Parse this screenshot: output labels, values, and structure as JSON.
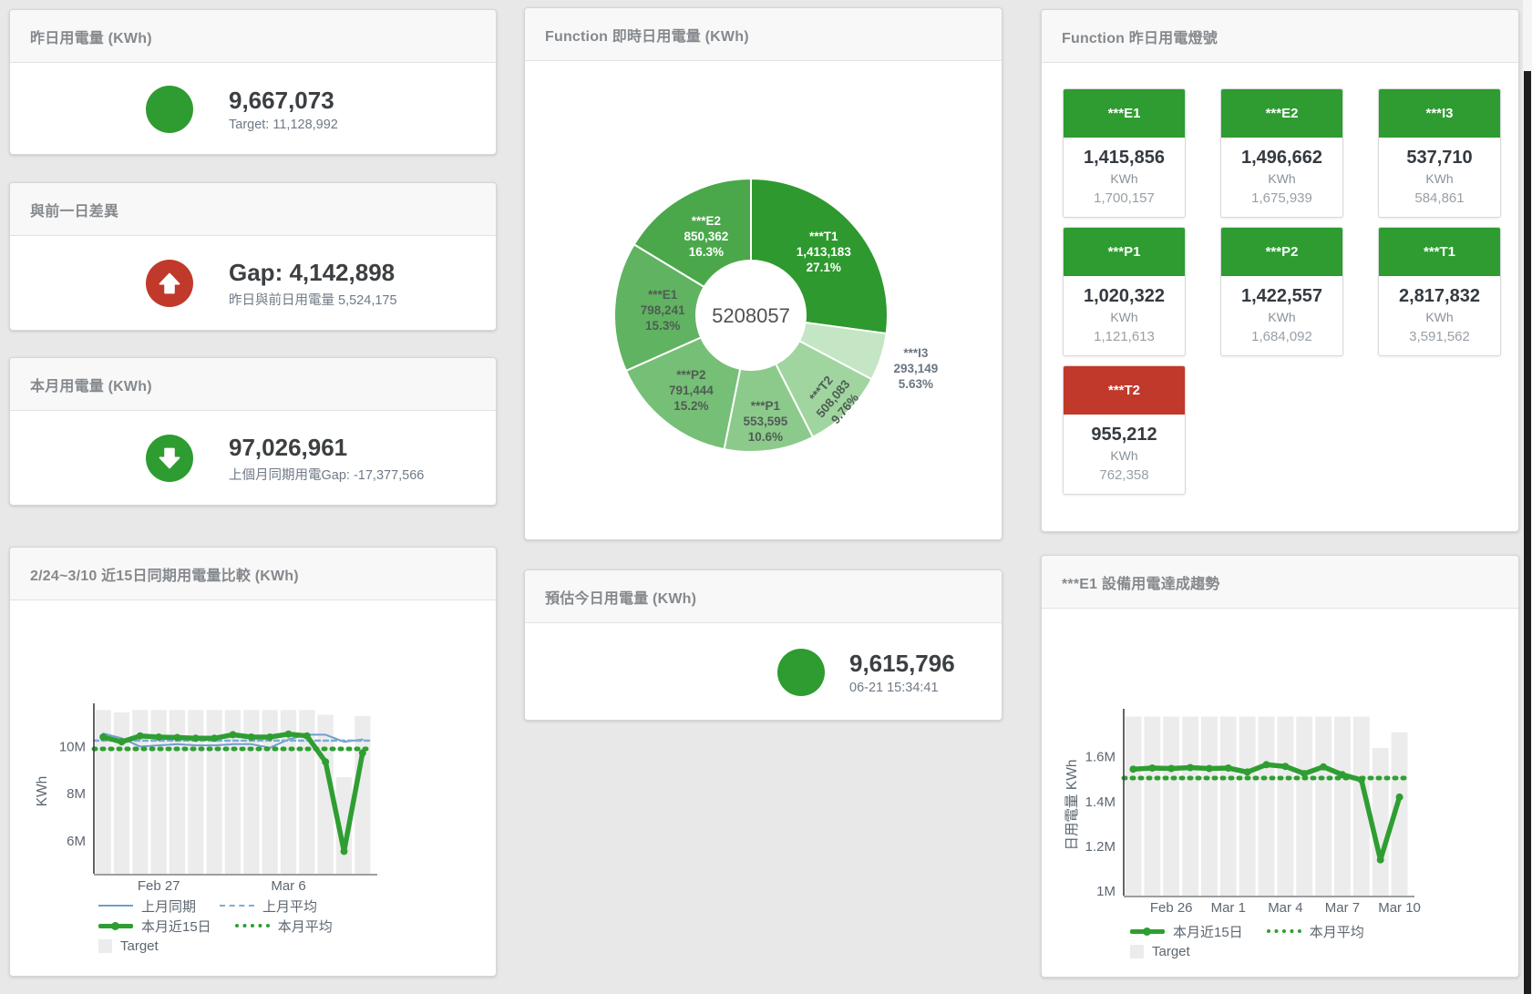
{
  "panels": {
    "yesterday": {
      "title": "昨日用電量 (KWh)",
      "value": "9,667,073",
      "subtitle": "Target: 11,128,992",
      "status_color": "#2e9c30"
    },
    "gap": {
      "title": "與前一日差異",
      "value": "Gap: 4,142,898",
      "subtitle": "昨日與前日用電量 5,524,175",
      "status_color": "#c0392b",
      "direction": "up"
    },
    "month": {
      "title": "本月用電量 (KWh)",
      "value": "97,026,961",
      "subtitle": "上個月同期用電Gap: -17,377,566",
      "status_color": "#2e9c30",
      "direction": "down"
    },
    "estimate": {
      "title": "預估今日用電量 (KWh)",
      "value": "9,615,796",
      "subtitle": "06-21 15:34:41",
      "status_color": "#2e9c30"
    },
    "lights": {
      "title": "Function 昨日用電燈號",
      "unit": "KWh",
      "tiles": [
        {
          "label": "***E1",
          "value": "1,415,856",
          "target": "1,700,157",
          "color": "#2e9c30"
        },
        {
          "label": "***E2",
          "value": "1,496,662",
          "target": "1,675,939",
          "color": "#2e9c30"
        },
        {
          "label": "***I3",
          "value": "537,710",
          "target": "584,861",
          "color": "#2e9c30"
        },
        {
          "label": "***P1",
          "value": "1,020,322",
          "target": "1,121,613",
          "color": "#2e9c30"
        },
        {
          "label": "***P2",
          "value": "1,422,557",
          "target": "1,684,092",
          "color": "#2e9c30"
        },
        {
          "label": "***T1",
          "value": "2,817,832",
          "target": "3,591,562",
          "color": "#2e9c30"
        },
        {
          "label": "***T2",
          "value": "955,212",
          "target": "762,358",
          "color": "#c0392b"
        }
      ]
    }
  },
  "chart_data": [
    {
      "type": "pie",
      "title": "Function 即時日用電量 (KWh)",
      "center_label": "5208057",
      "legend_position": "none",
      "slices": [
        {
          "name": "***T1",
          "value": 1413183,
          "value_label": "1,413,183",
          "pct": "27.1%",
          "color": "#2e992e",
          "text": "#ffffff",
          "label_r": 106
        },
        {
          "name": "***I3",
          "value": 293149,
          "value_label": "293,149",
          "pct": "5.63%",
          "color": "#c4e6c4",
          "text": "#6b7680",
          "label_r": 190,
          "outside": true
        },
        {
          "name": "***T2",
          "value": 508083,
          "value_label": "508,083",
          "pct": "9.76%",
          "color": "#a0d5a0",
          "text": "#4f5d54",
          "label_r": 128,
          "rotate": -50
        },
        {
          "name": "***P1",
          "value": 553595,
          "value_label": "553,595",
          "pct": "10.6%",
          "color": "#8cca8c",
          "text": "#4f5d54",
          "label_r": 117
        },
        {
          "name": "***P2",
          "value": 791444,
          "value_label": "791,444",
          "pct": "15.2%",
          "color": "#76bf76",
          "text": "#4f5d54",
          "label_r": 105
        },
        {
          "name": "***E1",
          "value": 798241,
          "value_label": "798,241",
          "pct": "15.3%",
          "color": "#60b360",
          "text": "#4f5d54",
          "label_r": 97
        },
        {
          "name": "***E2",
          "value": 850362,
          "value_label": "850,362",
          "pct": "16.3%",
          "color": "#4aa84a",
          "text": "#ffffff",
          "label_r": 100
        }
      ]
    },
    {
      "type": "line",
      "title": "2/24~3/10 近15日同期用電量比較 (KWh)",
      "ylabel": "KWh",
      "ylim": [
        4.6,
        11.6
      ],
      "grid": false,
      "yticks": [
        {
          "v": 6,
          "label": "6M"
        },
        {
          "v": 8,
          "label": "8M"
        },
        {
          "v": 10,
          "label": "10M"
        }
      ],
      "xticks": [
        {
          "i": 3,
          "label": "Feb 27"
        },
        {
          "i": 10,
          "label": "Mar 6"
        }
      ],
      "target": {
        "name": "Target",
        "color": "#ececec",
        "values": [
          11.55,
          11.45,
          11.55,
          11.55,
          11.55,
          11.55,
          11.55,
          11.55,
          11.55,
          11.55,
          11.55,
          11.55,
          11.35,
          8.7,
          11.3
        ]
      },
      "series": [
        {
          "name": "上月同期",
          "color": "#6e9fcd",
          "width": 2,
          "values": [
            10.55,
            10.35,
            10.0,
            10.05,
            10.1,
            10.05,
            10.05,
            10.1,
            10.1,
            9.95,
            10.3,
            10.5,
            10.5,
            10.2,
            10.3
          ]
        },
        {
          "name": "上月平均",
          "color": "#7dabd6",
          "width": 2.5,
          "dash": "5 4",
          "value_const": 10.25
        },
        {
          "name": "本月近15日",
          "color": "#2f9e32",
          "width": 5.5,
          "markers": true,
          "values": [
            10.4,
            10.2,
            10.45,
            10.4,
            10.38,
            10.35,
            10.35,
            10.5,
            10.4,
            10.4,
            10.53,
            10.45,
            9.35,
            5.55,
            9.73
          ]
        },
        {
          "name": "本月平均",
          "color": "#2f9e32",
          "width": 5,
          "dash": "2 7",
          "value_const": 9.9
        }
      ],
      "legend": [
        [
          {
            "type": "solid",
            "color": "#6e9fcd",
            "label": "上月同期"
          },
          {
            "type": "dashed",
            "color": "#7dabd6",
            "label": "上月平均"
          }
        ],
        [
          {
            "type": "thick",
            "color": "#2f9e32",
            "label": "本月近15日"
          },
          {
            "type": "dotted",
            "color": "#2f9e32",
            "label": "本月平均"
          }
        ],
        [
          {
            "type": "square",
            "color": "#ececec",
            "label": "Target"
          }
        ]
      ]
    },
    {
      "type": "line",
      "title": "***E1 設備用電達成趨勢",
      "ylabel": "日用電量 KWh",
      "ylim": [
        0.98,
        1.79
      ],
      "grid": false,
      "yticks": [
        {
          "v": 1,
          "label": "1M"
        },
        {
          "v": 1.2,
          "label": "1.2M"
        },
        {
          "v": 1.4,
          "label": "1.4M"
        },
        {
          "v": 1.6,
          "label": "1.6M"
        }
      ],
      "xticks": [
        {
          "i": 2,
          "label": "Feb 26"
        },
        {
          "i": 5,
          "label": "Mar 1"
        },
        {
          "i": 8,
          "label": "Mar 4"
        },
        {
          "i": 11,
          "label": "Mar 7"
        },
        {
          "i": 14,
          "label": "Mar 10"
        }
      ],
      "target": {
        "name": "Target",
        "color": "#ececec",
        "values": [
          1.78,
          1.78,
          1.78,
          1.78,
          1.78,
          1.78,
          1.78,
          1.78,
          1.78,
          1.78,
          1.78,
          1.78,
          1.78,
          1.64,
          1.71
        ]
      },
      "series": [
        {
          "name": "本月近15日",
          "color": "#2f9e32",
          "width": 5.5,
          "markers": true,
          "values": [
            1.545,
            1.55,
            1.548,
            1.552,
            1.548,
            1.55,
            1.532,
            1.565,
            1.557,
            1.525,
            1.555,
            1.52,
            1.497,
            1.14,
            1.42
          ]
        },
        {
          "name": "本月平均",
          "color": "#2f9e32",
          "width": 5,
          "dash": "2 7",
          "value_const": 1.505
        }
      ],
      "legend": [
        [
          {
            "type": "thick",
            "color": "#2f9e32",
            "label": "本月近15日"
          },
          {
            "type": "dotted",
            "color": "#2f9e32",
            "label": "本月平均"
          }
        ],
        [
          {
            "type": "square",
            "color": "#ececec",
            "label": "Target"
          }
        ]
      ]
    }
  ]
}
